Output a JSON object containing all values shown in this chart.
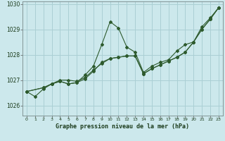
{
  "title": "Graphe pression niveau de la mer (hPa)",
  "background_color": "#cce8ec",
  "grid_color": "#aacfd4",
  "line_color": "#2d5a2d",
  "xlim": [
    -0.5,
    23.5
  ],
  "ylim": [
    1025.6,
    1030.1
  ],
  "xticks": [
    0,
    1,
    2,
    3,
    4,
    5,
    6,
    7,
    8,
    9,
    10,
    11,
    12,
    13,
    14,
    15,
    16,
    17,
    18,
    19,
    20,
    21,
    22,
    23
  ],
  "yticks": [
    1026,
    1027,
    1028,
    1029,
    1030
  ],
  "series1": [
    [
      0,
      1026.55
    ],
    [
      1,
      1026.35
    ],
    [
      2,
      1026.65
    ],
    [
      3,
      1026.85
    ],
    [
      4,
      1026.95
    ],
    [
      5,
      1026.85
    ],
    [
      6,
      1026.9
    ],
    [
      7,
      1027.2
    ],
    [
      8,
      1027.55
    ],
    [
      9,
      1028.4
    ],
    [
      10,
      1029.3
    ],
    [
      11,
      1029.05
    ],
    [
      12,
      1028.3
    ],
    [
      13,
      1028.1
    ],
    [
      14,
      1027.3
    ],
    [
      15,
      1027.55
    ],
    [
      16,
      1027.7
    ],
    [
      17,
      1027.8
    ],
    [
      18,
      1028.15
    ],
    [
      19,
      1028.4
    ],
    [
      20,
      1028.5
    ],
    [
      21,
      1029.1
    ],
    [
      22,
      1029.45
    ],
    [
      23,
      1029.85
    ]
  ],
  "series2": [
    [
      0,
      1026.55
    ],
    [
      2,
      1026.7
    ],
    [
      3,
      1026.85
    ],
    [
      4,
      1026.95
    ],
    [
      5,
      1026.85
    ],
    [
      6,
      1026.9
    ],
    [
      7,
      1027.05
    ],
    [
      8,
      1027.35
    ],
    [
      9,
      1027.7
    ],
    [
      10,
      1027.85
    ],
    [
      11,
      1027.9
    ],
    [
      12,
      1027.95
    ],
    [
      13,
      1027.95
    ],
    [
      14,
      1027.25
    ],
    [
      15,
      1027.45
    ],
    [
      16,
      1027.6
    ],
    [
      17,
      1027.75
    ],
    [
      18,
      1027.9
    ],
    [
      19,
      1028.1
    ],
    [
      20,
      1028.5
    ],
    [
      21,
      1029.0
    ],
    [
      22,
      1029.4
    ],
    [
      23,
      1029.85
    ]
  ],
  "series3": [
    [
      0,
      1026.55
    ],
    [
      2,
      1026.7
    ],
    [
      3,
      1026.85
    ],
    [
      4,
      1027.0
    ],
    [
      5,
      1027.0
    ],
    [
      6,
      1026.95
    ],
    [
      7,
      1027.1
    ],
    [
      8,
      1027.4
    ],
    [
      9,
      1027.65
    ],
    [
      10,
      1027.85
    ],
    [
      11,
      1027.9
    ],
    [
      12,
      1027.95
    ],
    [
      13,
      1027.95
    ],
    [
      14,
      1027.25
    ],
    [
      15,
      1027.45
    ],
    [
      16,
      1027.6
    ],
    [
      17,
      1027.75
    ],
    [
      18,
      1027.9
    ],
    [
      19,
      1028.1
    ],
    [
      20,
      1028.5
    ],
    [
      21,
      1029.0
    ],
    [
      22,
      1029.4
    ],
    [
      23,
      1029.85
    ]
  ]
}
